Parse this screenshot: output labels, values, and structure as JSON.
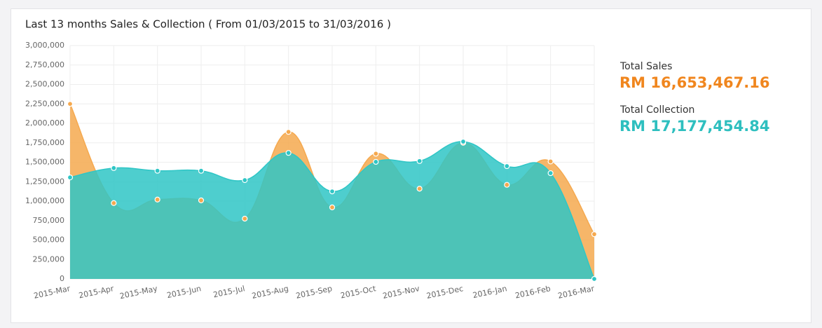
{
  "chart_data": {
    "type": "area",
    "title": "Last 13 months Sales & Collection ( From 01/03/2015 to 31/03/2016 )",
    "categories": [
      "2015-Mar",
      "2015-Apr",
      "2015-May",
      "2015-Jun",
      "2015-Jul",
      "2015-Aug",
      "2015-Sep",
      "2015-Oct",
      "2015-Nov",
      "2015-Dec",
      "2016-Jan",
      "2016-Feb",
      "2016-Mar"
    ],
    "series": [
      {
        "name": "Sales",
        "color": "#f5a94f",
        "values": [
          2250000,
          975000,
          1020000,
          1010000,
          775000,
          1890000,
          920000,
          1610000,
          1160000,
          1750000,
          1210000,
          1510000,
          575000
        ]
      },
      {
        "name": "Collection",
        "color": "#2fc6c6",
        "values": [
          1305000,
          1425000,
          1390000,
          1390000,
          1270000,
          1620000,
          1125000,
          1505000,
          1515000,
          1765000,
          1450000,
          1360000,
          0
        ]
      }
    ],
    "ylim": [
      0,
      3000000
    ],
    "yticks": [
      0,
      {
        "value": 250000,
        "label": "250,000"
      },
      {
        "value": 500000,
        "label": "500,000"
      },
      {
        "value": 750000,
        "label": "750,000"
      },
      {
        "value": 1000000,
        "label": "1,000,000"
      },
      {
        "value": 1250000,
        "label": "1,250,000"
      },
      {
        "value": 1500000,
        "label": "1,500,000"
      },
      {
        "value": 1750000,
        "label": "1,750,000"
      },
      {
        "value": 2000000,
        "label": "2,000,000"
      },
      {
        "value": 2250000,
        "label": "2,250,000"
      },
      {
        "value": 2500000,
        "label": "2,500,000"
      },
      {
        "value": 2750000,
        "label": "2,750,000"
      },
      {
        "value": 3000000,
        "label": "3,000,000"
      }
    ],
    "grid": true
  },
  "summary": [
    {
      "label": "Total Sales",
      "value": "RM 16,653,467.16",
      "color": "#f0861e"
    },
    {
      "label": "Total Collection",
      "value": "RM 17,177,454.84",
      "color": "#2ebfbf"
    }
  ]
}
